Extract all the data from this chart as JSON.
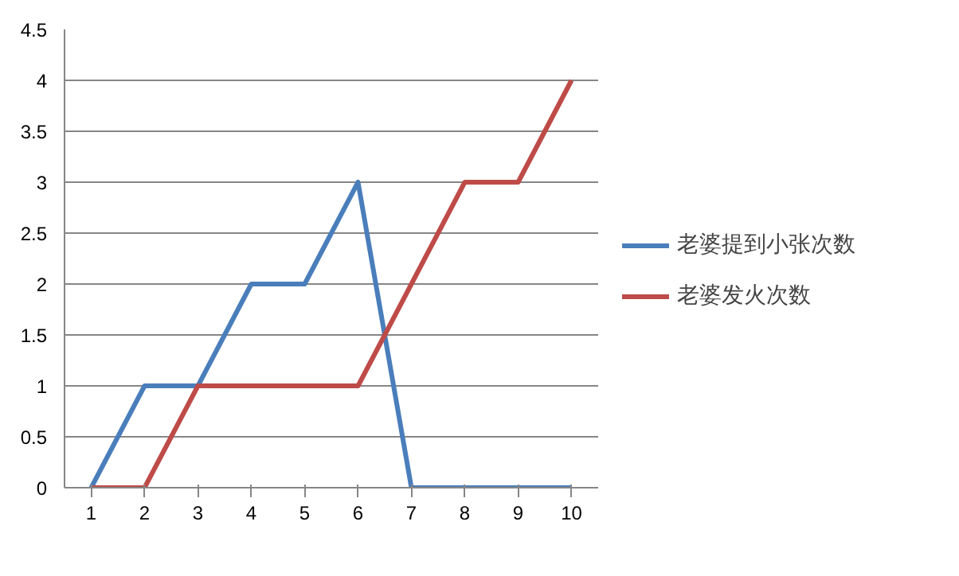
{
  "chart_data": {
    "type": "line",
    "categories": [
      "1",
      "2",
      "3",
      "4",
      "5",
      "6",
      "7",
      "8",
      "9",
      "10"
    ],
    "series": [
      {
        "name": "老婆提到小张次数",
        "color": "#4a7ebb",
        "values": [
          0,
          1,
          1,
          2,
          2,
          3,
          0,
          0,
          0,
          0
        ]
      },
      {
        "name": "老婆发火次数",
        "color": "#be4b48",
        "values": [
          0,
          0,
          1,
          1,
          1,
          1,
          2,
          3,
          3,
          4
        ]
      }
    ],
    "ylim": [
      0,
      4.5
    ],
    "yticks": [
      0,
      0.5,
      1,
      1.5,
      2,
      2.5,
      3,
      3.5,
      4,
      4.5
    ],
    "grid": "y",
    "legend": "right",
    "line_style": "solid",
    "marker": "none"
  }
}
